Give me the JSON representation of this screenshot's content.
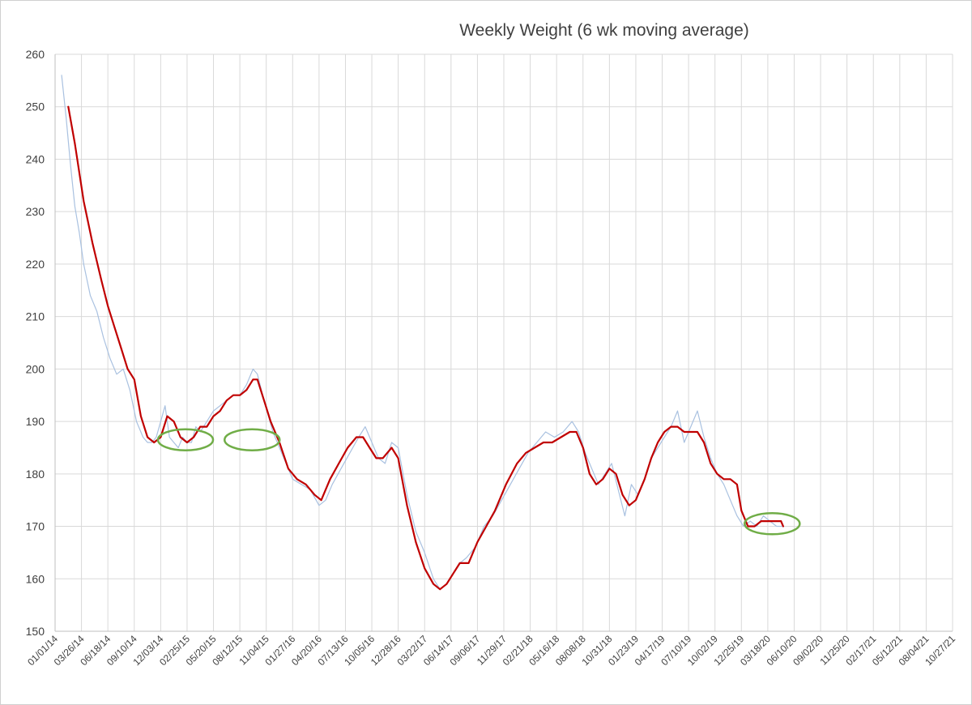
{
  "chart_data": {
    "type": "line",
    "title": "Weekly Weight (6 wk moving average)",
    "xlabel": "",
    "ylabel": "",
    "ylim": [
      150,
      260
    ],
    "y_ticks": [
      150,
      160,
      170,
      180,
      190,
      200,
      210,
      220,
      230,
      240,
      250,
      260
    ],
    "x_tick_labels": [
      "01/01/14",
      "03/26/14",
      "06/18/14",
      "09/10/14",
      "12/03/14",
      "02/25/15",
      "05/20/15",
      "08/12/15",
      "11/04/15",
      "01/27/16",
      "04/20/16",
      "07/13/16",
      "10/05/16",
      "12/28/16",
      "03/22/17",
      "06/14/17",
      "09/06/17",
      "11/29/17",
      "02/21/18",
      "05/16/18",
      "08/08/18",
      "10/31/18",
      "01/23/19",
      "04/17/19",
      "07/10/19",
      "10/02/19",
      "12/25/19",
      "03/18/20",
      "06/10/20",
      "09/02/20",
      "11/25/20",
      "02/17/21",
      "05/12/21",
      "08/04/21",
      "10/27/21"
    ],
    "grid": true,
    "legend": "none",
    "series": [
      {
        "color": "#a9c1e0",
        "style": "weekly",
        "points": [
          [
            "01/22/14",
            256
          ],
          [
            "02/05/14",
            248
          ],
          [
            "02/19/14",
            239
          ],
          [
            "03/05/14",
            231
          ],
          [
            "03/19/14",
            226
          ],
          [
            "04/02/14",
            220
          ],
          [
            "04/23/14",
            214
          ],
          [
            "05/14/14",
            211
          ],
          [
            "06/04/14",
            206
          ],
          [
            "06/25/14",
            202
          ],
          [
            "07/16/14",
            199
          ],
          [
            "08/06/14",
            200
          ],
          [
            "08/27/14",
            196
          ],
          [
            "09/17/14",
            190
          ],
          [
            "10/08/14",
            187
          ],
          [
            "10/22/14",
            186
          ],
          [
            "11/05/14",
            186
          ],
          [
            "11/19/14",
            187
          ],
          [
            "12/03/14",
            190
          ],
          [
            "12/17/14",
            193
          ],
          [
            "12/31/14",
            187
          ],
          [
            "01/14/15",
            186
          ],
          [
            "01/28/15",
            185
          ],
          [
            "02/11/15",
            187
          ],
          [
            "02/25/15",
            186
          ],
          [
            "03/11/15",
            186
          ],
          [
            "03/25/15",
            189
          ],
          [
            "04/08/15",
            188
          ],
          [
            "04/29/15",
            190
          ],
          [
            "05/20/15",
            192
          ],
          [
            "06/10/15",
            193
          ],
          [
            "07/01/15",
            194
          ],
          [
            "07/22/15",
            195
          ],
          [
            "08/12/15",
            195
          ],
          [
            "09/02/15",
            197
          ],
          [
            "09/23/15",
            200
          ],
          [
            "10/07/15",
            199
          ],
          [
            "10/28/15",
            194
          ],
          [
            "11/25/15",
            188
          ],
          [
            "12/30/15",
            183
          ],
          [
            "01/27/16",
            179
          ],
          [
            "02/24/16",
            178
          ],
          [
            "03/23/16",
            177
          ],
          [
            "04/20/16",
            174
          ],
          [
            "05/11/16",
            175
          ],
          [
            "06/01/16",
            178
          ],
          [
            "06/29/16",
            181
          ],
          [
            "07/27/16",
            184
          ],
          [
            "08/24/16",
            187
          ],
          [
            "09/14/16",
            189
          ],
          [
            "10/05/16",
            186
          ],
          [
            "10/26/16",
            183
          ],
          [
            "11/16/16",
            182
          ],
          [
            "12/07/16",
            186
          ],
          [
            "12/28/16",
            185
          ],
          [
            "01/25/17",
            176
          ],
          [
            "02/22/17",
            169
          ],
          [
            "03/22/17",
            165
          ],
          [
            "04/19/17",
            160
          ],
          [
            "05/10/17",
            158
          ],
          [
            "05/31/17",
            159
          ],
          [
            "06/21/17",
            161
          ],
          [
            "07/12/17",
            163
          ],
          [
            "08/02/17",
            164
          ],
          [
            "08/30/17",
            166
          ],
          [
            "09/27/17",
            170
          ],
          [
            "10/25/17",
            172
          ],
          [
            "11/22/17",
            175
          ],
          [
            "12/20/17",
            178
          ],
          [
            "01/17/18",
            181
          ],
          [
            "02/14/18",
            184
          ],
          [
            "03/14/18",
            186
          ],
          [
            "04/11/18",
            188
          ],
          [
            "05/09/18",
            187
          ],
          [
            "06/06/18",
            188
          ],
          [
            "07/04/18",
            190
          ],
          [
            "07/25/18",
            188
          ],
          [
            "08/15/18",
            184
          ],
          [
            "09/05/18",
            181
          ],
          [
            "09/26/18",
            178
          ],
          [
            "10/17/18",
            180
          ],
          [
            "11/07/18",
            182
          ],
          [
            "11/28/18",
            177
          ],
          [
            "12/19/18",
            172
          ],
          [
            "01/09/19",
            178
          ],
          [
            "01/30/19",
            176
          ],
          [
            "02/20/19",
            179
          ],
          [
            "03/13/19",
            183
          ],
          [
            "04/03/19",
            185
          ],
          [
            "04/24/19",
            187
          ],
          [
            "05/15/19",
            189
          ],
          [
            "06/05/19",
            192
          ],
          [
            "06/26/19",
            186
          ],
          [
            "07/17/19",
            189
          ],
          [
            "08/07/19",
            192
          ],
          [
            "08/28/19",
            187
          ],
          [
            "09/18/19",
            183
          ],
          [
            "10/09/19",
            180
          ],
          [
            "10/30/19",
            178
          ],
          [
            "11/20/19",
            175
          ],
          [
            "12/11/19",
            172
          ],
          [
            "01/01/20",
            170
          ],
          [
            "01/22/20",
            171
          ],
          [
            "02/12/20",
            170
          ],
          [
            "03/04/20",
            172
          ],
          [
            "03/25/20",
            171
          ],
          [
            "04/15/20",
            170
          ],
          [
            "05/06/20",
            170
          ]
        ]
      },
      {
        "color": "#c00000",
        "style": "moving-average",
        "points": [
          [
            "02/12/14",
            250
          ],
          [
            "03/05/14",
            243
          ],
          [
            "04/02/14",
            232
          ],
          [
            "04/30/14",
            224
          ],
          [
            "05/28/14",
            217
          ],
          [
            "06/18/14",
            212
          ],
          [
            "07/09/14",
            208
          ],
          [
            "07/30/14",
            204
          ],
          [
            "08/20/14",
            200
          ],
          [
            "09/10/14",
            198
          ],
          [
            "10/01/14",
            191
          ],
          [
            "10/22/14",
            187
          ],
          [
            "11/12/14",
            186
          ],
          [
            "12/03/14",
            187
          ],
          [
            "12/24/14",
            191
          ],
          [
            "01/14/15",
            190
          ],
          [
            "02/04/15",
            187
          ],
          [
            "02/25/15",
            186
          ],
          [
            "03/18/15",
            187
          ],
          [
            "04/08/15",
            189
          ],
          [
            "04/29/15",
            189
          ],
          [
            "05/20/15",
            191
          ],
          [
            "06/10/15",
            192
          ],
          [
            "07/01/15",
            194
          ],
          [
            "07/22/15",
            195
          ],
          [
            "08/12/15",
            195
          ],
          [
            "09/02/15",
            196
          ],
          [
            "09/23/15",
            198
          ],
          [
            "10/07/15",
            198
          ],
          [
            "10/28/15",
            194
          ],
          [
            "11/18/15",
            190
          ],
          [
            "12/16/15",
            186
          ],
          [
            "01/13/16",
            181
          ],
          [
            "02/10/16",
            179
          ],
          [
            "03/09/16",
            178
          ],
          [
            "04/06/16",
            176
          ],
          [
            "04/27/16",
            175
          ],
          [
            "05/25/16",
            179
          ],
          [
            "06/22/16",
            182
          ],
          [
            "07/20/16",
            185
          ],
          [
            "08/17/16",
            187
          ],
          [
            "09/07/16",
            187
          ],
          [
            "09/28/16",
            185
          ],
          [
            "10/19/16",
            183
          ],
          [
            "11/09/16",
            183
          ],
          [
            "12/07/16",
            185
          ],
          [
            "12/28/16",
            183
          ],
          [
            "01/25/17",
            174
          ],
          [
            "02/22/17",
            167
          ],
          [
            "03/22/17",
            162
          ],
          [
            "04/19/17",
            159
          ],
          [
            "05/10/17",
            158
          ],
          [
            "05/31/17",
            159
          ],
          [
            "06/21/17",
            161
          ],
          [
            "07/12/17",
            163
          ],
          [
            "08/09/17",
            163
          ],
          [
            "09/06/17",
            167
          ],
          [
            "10/04/17",
            170
          ],
          [
            "11/01/17",
            173
          ],
          [
            "12/06/17",
            178
          ],
          [
            "01/10/18",
            182
          ],
          [
            "02/07/18",
            184
          ],
          [
            "03/07/18",
            185
          ],
          [
            "04/04/18",
            186
          ],
          [
            "05/02/18",
            186
          ],
          [
            "05/30/18",
            187
          ],
          [
            "06/27/18",
            188
          ],
          [
            "07/18/18",
            188
          ],
          [
            "08/08/18",
            185
          ],
          [
            "08/29/18",
            180
          ],
          [
            "09/19/18",
            178
          ],
          [
            "10/10/18",
            179
          ],
          [
            "10/31/18",
            181
          ],
          [
            "11/21/18",
            180
          ],
          [
            "12/12/18",
            176
          ],
          [
            "01/02/19",
            174
          ],
          [
            "01/23/19",
            175
          ],
          [
            "02/20/19",
            179
          ],
          [
            "03/13/19",
            183
          ],
          [
            "04/03/19",
            186
          ],
          [
            "04/24/19",
            188
          ],
          [
            "05/15/19",
            189
          ],
          [
            "06/05/19",
            189
          ],
          [
            "06/26/19",
            188
          ],
          [
            "07/17/19",
            188
          ],
          [
            "08/07/19",
            188
          ],
          [
            "08/28/19",
            186
          ],
          [
            "09/18/19",
            182
          ],
          [
            "10/09/19",
            180
          ],
          [
            "10/30/19",
            179
          ],
          [
            "11/20/19",
            179
          ],
          [
            "12/11/19",
            178
          ],
          [
            "12/25/19",
            173
          ],
          [
            "01/15/20",
            170
          ],
          [
            "02/05/20",
            170
          ],
          [
            "02/26/20",
            171
          ],
          [
            "03/18/20",
            171
          ],
          [
            "04/08/20",
            171
          ],
          [
            "04/29/20",
            171
          ],
          [
            "05/06/20",
            170
          ]
        ]
      }
    ],
    "annotations": [
      {
        "shape": "ellipse",
        "color": "#70ad47",
        "x_center": "02/20/15",
        "y_center": 186.5
      },
      {
        "shape": "ellipse",
        "color": "#70ad47",
        "x_center": "09/20/15",
        "y_center": 186.5
      },
      {
        "shape": "ellipse",
        "color": "#70ad47",
        "x_center": "04/01/20",
        "y_center": 170.5
      }
    ]
  }
}
